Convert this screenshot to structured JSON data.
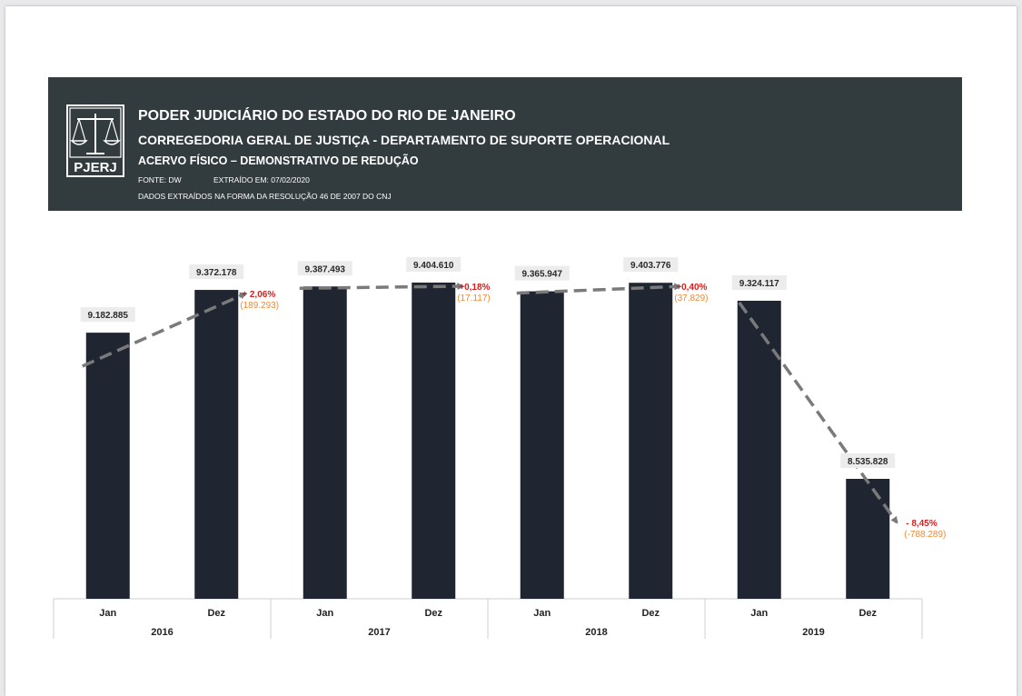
{
  "header": {
    "logo_text": "PJERJ",
    "line1": "PODER JUDICIÁRIO DO ESTADO DO RIO DE JANEIRO",
    "line2": "CORREGEDORIA GERAL DE JUSTIÇA - DEPARTAMENTO DE SUPORTE OPERACIONAL",
    "line3": "ACERVO FÍSICO – DEMONSTRATIVO DE REDUÇÃO",
    "source": "FONTE: DW",
    "extracted": "EXTRAÍDO EM: 07/02/2020",
    "note": "DADOS EXTRAÍDOS NA FORMA DA RESOLUÇÃO 46 DE 2007 DO CNJ"
  },
  "colors": {
    "banner": "#323b3d",
    "bar": "#1f2531",
    "increase": "#d81e1e",
    "delta_abs": "#f08a36",
    "trend_arrow": "#7a7a7a"
  },
  "chart_data": {
    "type": "bar",
    "title": "ACERVO FÍSICO – DEMONSTRATIVO DE REDUÇÃO",
    "categories": [
      "Jan",
      "Dez",
      "Jan",
      "Dez",
      "Jan",
      "Dez",
      "Jan",
      "Dez"
    ],
    "groups": [
      "2016",
      "2017",
      "2018",
      "2019"
    ],
    "values": [
      9182885,
      9372178,
      9387493,
      9404610,
      9365947,
      9403776,
      9324117,
      8535828
    ],
    "value_labels": [
      "9.182.885",
      "9.372.178",
      "9.387.493",
      "9.404.610",
      "9.365.947",
      "9.403.776",
      "9.324.117",
      "8.535.828"
    ],
    "changes": [
      {
        "year": "2016",
        "pct": "+ 2,06%",
        "abs": "(189.293)"
      },
      {
        "year": "2017",
        "pct": "+0,18%",
        "abs": "(17.117)"
      },
      {
        "year": "2018",
        "pct": "+0,40%",
        "abs": "(37.829)"
      },
      {
        "year": "2019",
        "pct": "- 8,45%",
        "abs": "(-788.289)"
      }
    ],
    "ylim": [
      0,
      9800000
    ],
    "grid": false,
    "legend": "none"
  }
}
